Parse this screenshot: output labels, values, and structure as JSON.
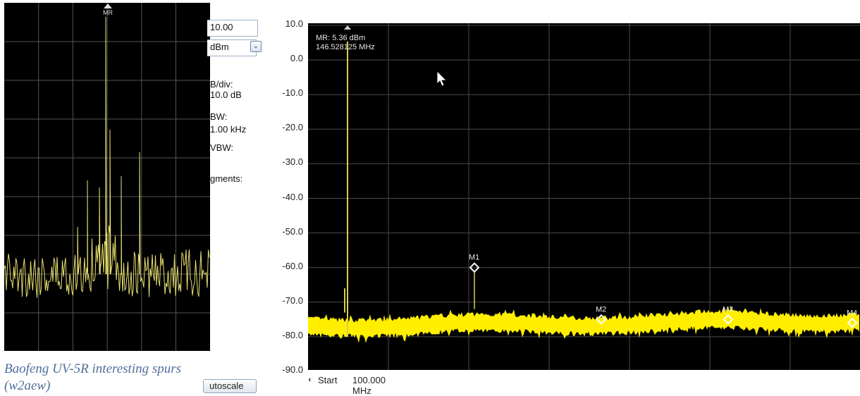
{
  "inset": {
    "marker_label": "MR"
  },
  "caption": "Baofeng UV-5R interesting spurs (w2aew)",
  "settings_panel": {
    "ref_level_value": "10.00",
    "unit_value": "dBm",
    "scale_label": "B/div:",
    "scale_value": "10.0 dB",
    "rbw_label": "BW:",
    "rbw_value": "1.00 kHz",
    "vbw_label": "VBW:",
    "segments_label": "gments:",
    "autoscale_label": "utoscale"
  },
  "main_spectrum": {
    "readout": {
      "line1": "MR: 5.36 dBm",
      "line2": "146.528125 MHz"
    },
    "y_ticks": [
      "10.0",
      "0.0",
      "-10.0",
      "-20.0",
      "-30.0",
      "-40.0",
      "-50.0",
      "-60.0",
      "-70.0",
      "-80.0",
      "-90.0"
    ],
    "markers": [
      {
        "label": "M1",
        "level_dbm": -60
      },
      {
        "label": "M2",
        "level_dbm": -75
      },
      {
        "label": "M3",
        "level_dbm": -75
      },
      {
        "label": "M4",
        "level_dbm": -76
      }
    ],
    "marker_ref_label": "MR",
    "start_label": "Start",
    "start_value": "100.000 MHz",
    "trace_color": "#ffee00"
  }
}
